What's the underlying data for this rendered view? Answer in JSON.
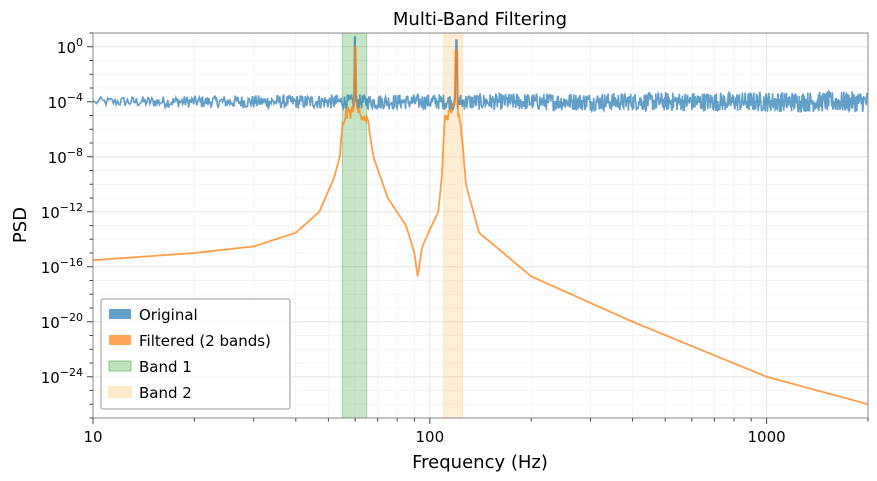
{
  "chart_data": {
    "type": "line",
    "title": "Multi-Band Filtering",
    "xlabel": "Frequency (Hz)",
    "ylabel": "PSD",
    "x_scale": "log",
    "y_scale": "log",
    "xlim": [
      10,
      2000
    ],
    "ylim": [
      1e-27,
      10.0
    ],
    "x_ticks": [
      {
        "value": 10,
        "label": "10"
      },
      {
        "value": 100,
        "label": "100"
      },
      {
        "value": 1000,
        "label": "1000"
      }
    ],
    "y_ticks": [
      {
        "value": 1,
        "base": "10",
        "exp": "0"
      },
      {
        "value": 0.0001,
        "base": "10",
        "exp": "−4"
      },
      {
        "value": 1e-08,
        "base": "10",
        "exp": "−8"
      },
      {
        "value": 1e-12,
        "base": "10",
        "exp": "−12"
      },
      {
        "value": 1e-16,
        "base": "10",
        "exp": "−16"
      },
      {
        "value": 1e-20,
        "base": "10",
        "exp": "−20"
      },
      {
        "value": 1e-24,
        "base": "10",
        "exp": "−24"
      }
    ],
    "grid": true,
    "legend_position": "lower-left",
    "bands": [
      {
        "name": "Band 1",
        "x_start": 55,
        "x_end": 65,
        "color": "#2ca02c"
      },
      {
        "name": "Band 2",
        "x_start": 110,
        "x_end": 125,
        "color": "#ffbf5e"
      }
    ],
    "series": [
      {
        "name": "Original",
        "color": "#1f77b4",
        "noise_decades": 0.55,
        "x": [
          10,
          20,
          40,
          60,
          120,
          300,
          1000,
          2000
        ],
        "y": [
          0.0001,
          0.0001,
          0.0001,
          0.0001,
          0.0001,
          0.0001,
          0.0001,
          0.0001
        ],
        "peaks": [
          {
            "x": 60,
            "y": 5
          },
          {
            "x": 120,
            "y": 3
          }
        ]
      },
      {
        "name": "Filtered (2 bands)",
        "color": "#ff7f0e",
        "x": [
          10,
          20,
          30,
          40,
          47,
          52,
          54,
          55,
          56,
          60,
          64,
          65,
          66,
          68,
          75,
          85,
          90,
          92,
          95,
          100,
          106,
          109,
          110,
          112,
          118,
          122,
          124,
          125,
          128,
          140,
          200,
          400,
          1000,
          2000
        ],
        "y": [
          3e-16,
          1e-15,
          3e-15,
          3e-14,
          1e-12,
          3e-10,
          1e-08,
          1e-06,
          1e-05,
          3e-05,
          1e-05,
          5e-06,
          1e-06,
          1e-08,
          1e-11,
          1e-13,
          1e-15,
          2e-17,
          3e-15,
          5e-14,
          1e-12,
          1e-09,
          1e-06,
          1e-05,
          3e-05,
          1e-05,
          1e-06,
          1e-07,
          1e-10,
          3e-14,
          2e-17,
          1e-20,
          1e-24,
          1e-26
        ],
        "peaks": [
          {
            "x": 60,
            "y": 1
          },
          {
            "x": 120,
            "y": 0.5
          }
        ]
      }
    ],
    "legend": [
      {
        "label": "Original",
        "color": "#1f77b4"
      },
      {
        "label": "Filtered (2 bands)",
        "color": "#ff7f0e"
      },
      {
        "label": "Band 1",
        "color": "#2ca02c"
      },
      {
        "label": "Band 2",
        "color": "#ffbf5e"
      }
    ]
  }
}
